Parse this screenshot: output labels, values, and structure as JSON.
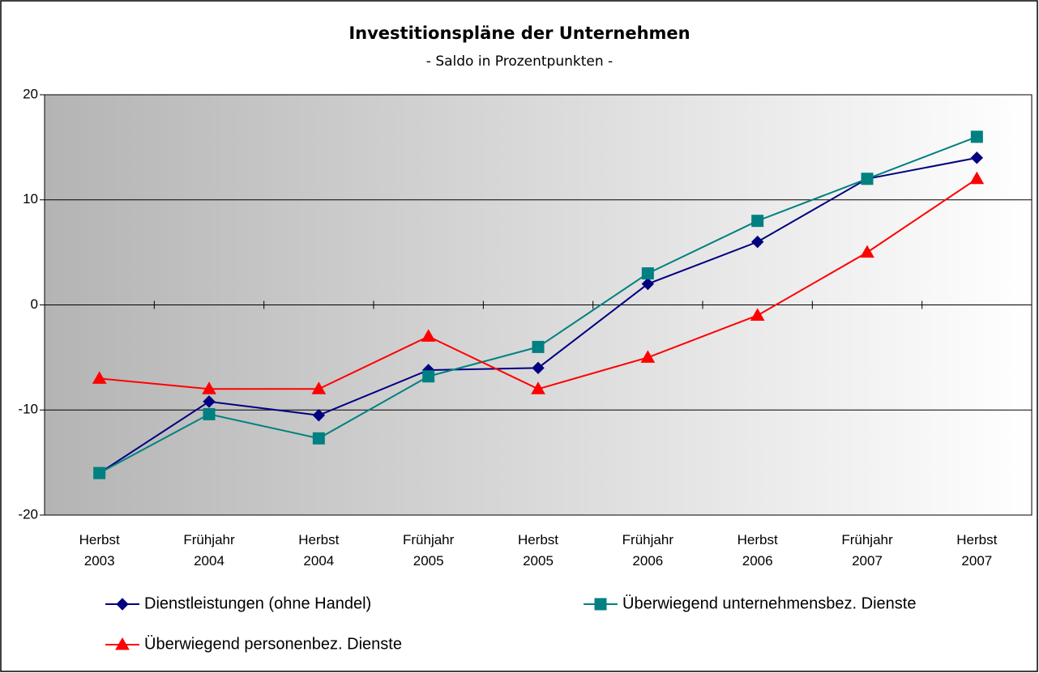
{
  "chart_data": {
    "type": "line",
    "title": "Investitionspläne der Unternehmen",
    "subtitle": "- Saldo in Prozentpunkten -",
    "categories": [
      "Herbst\n2003",
      "Frühjahr\n2004",
      "Herbst\n2004",
      "Frühjahr\n2005",
      "Herbst\n2005",
      "Frühjahr\n2006",
      "Herbst\n2006",
      "Frühjahr\n2007",
      "Herbst\n2007"
    ],
    "series": [
      {
        "name": "Dienstleistungen (ohne Handel)",
        "color": "#000080",
        "marker": "diamond",
        "values": [
          -16,
          -9.2,
          -10.5,
          -6.2,
          -6,
          2,
          6,
          12,
          14
        ]
      },
      {
        "name": "Überwiegend unternehmensbez. Dienste",
        "color": "#008080",
        "marker": "square",
        "values": [
          -16,
          -10.4,
          -12.7,
          -6.8,
          -4,
          3,
          8,
          12,
          16
        ]
      },
      {
        "name": "Überwiegend personenbez. Dienste",
        "color": "#ff0000",
        "marker": "triangle",
        "values": [
          -7,
          -8,
          -8,
          -3,
          -8,
          -5,
          -1,
          5,
          12
        ]
      }
    ],
    "ylim": [
      -20,
      20
    ],
    "yticks": [
      -20,
      -10,
      0,
      10,
      20
    ],
    "grid": true,
    "legend": "bottom"
  }
}
